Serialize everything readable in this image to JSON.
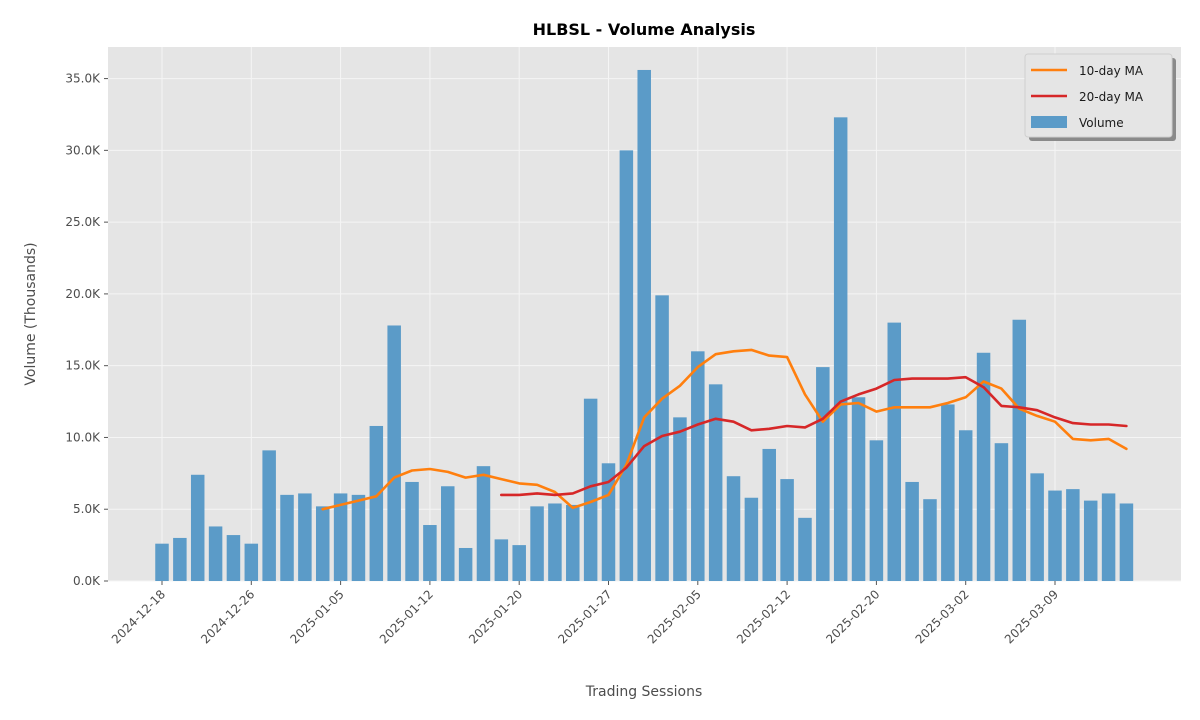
{
  "chart_data": {
    "type": "bar",
    "title": "HLBSL - Volume Analysis",
    "xlabel": "Trading Sessions",
    "ylabel": "Volume (Thousands)",
    "ylim": [
      0,
      37200
    ],
    "y_ticks": [
      0,
      5000,
      10000,
      15000,
      20000,
      25000,
      30000,
      35000
    ],
    "y_tick_labels": [
      "0.0K",
      "5.0K",
      "10.0K",
      "15.0K",
      "20.0K",
      "25.0K",
      "30.0K",
      "35.0K"
    ],
    "x_tick_labels": [
      "2024-12-18",
      "2024-12-26",
      "2025-01-05",
      "2025-01-12",
      "2025-01-20",
      "2025-01-27",
      "2025-02-05",
      "2025-02-12",
      "2025-02-20",
      "2025-03-02",
      "2025-03-09"
    ],
    "grid": true,
    "legend_position": "top-right",
    "colors": {
      "volume": "#5b9bc8",
      "ma10": "#ff7f0e",
      "ma20": "#d62728",
      "plot_bg": "#e5e5e5",
      "grid": "#f5f5f5"
    },
    "legend": [
      {
        "label": "10-day MA",
        "kind": "line",
        "color": "#ff7f0e"
      },
      {
        "label": "20-day MA",
        "kind": "line",
        "color": "#d62728"
      },
      {
        "label": "Volume",
        "kind": "bar",
        "color": "#5b9bc8"
      }
    ],
    "series": [
      {
        "name": "Volume",
        "kind": "bar",
        "values": [
          2600,
          3000,
          7400,
          3800,
          3200,
          2600,
          9100,
          6000,
          6100,
          5200,
          6100,
          6000,
          10800,
          17800,
          6900,
          3900,
          6600,
          2300,
          8000,
          2900,
          2500,
          5200,
          5400,
          5300,
          12700,
          8200,
          30000,
          35600,
          19900,
          11400,
          16000,
          13700,
          7300,
          5800,
          9200,
          7100,
          4400,
          14900,
          32300,
          12800,
          9800,
          18000,
          6900,
          5700,
          12300,
          10500,
          15900,
          9600,
          18200,
          7500,
          6300,
          6400,
          5600,
          6100,
          5400
        ]
      },
      {
        "name": "10-day MA",
        "kind": "line",
        "values": [
          null,
          null,
          null,
          null,
          null,
          null,
          null,
          null,
          null,
          5000,
          5300,
          5600,
          5900,
          7200,
          7700,
          7800,
          7600,
          7200,
          7400,
          7100,
          6800,
          6700,
          6200,
          5100,
          5500,
          6000,
          8100,
          11400,
          12700,
          13600,
          14900,
          15800,
          16000,
          16100,
          15700,
          15600,
          13000,
          11100,
          12300,
          12400,
          11800,
          12100,
          12100,
          12100,
          12400,
          12800,
          13900,
          13400,
          12000,
          11500,
          11100,
          9900,
          9800,
          9900,
          9200
        ]
      },
      {
        "name": "20-day MA",
        "kind": "line",
        "values": [
          null,
          null,
          null,
          null,
          null,
          null,
          null,
          null,
          null,
          null,
          null,
          null,
          null,
          null,
          null,
          null,
          null,
          null,
          null,
          6000,
          6000,
          6100,
          6000,
          6100,
          6600,
          6900,
          7900,
          9400,
          10100,
          10400,
          10900,
          11300,
          11100,
          10500,
          10600,
          10800,
          10700,
          11300,
          12500,
          13000,
          13400,
          14000,
          14100,
          14100,
          14100,
          14200,
          13500,
          12200,
          12100,
          11900,
          11400,
          11000,
          10900,
          10900,
          10800
        ]
      }
    ]
  }
}
